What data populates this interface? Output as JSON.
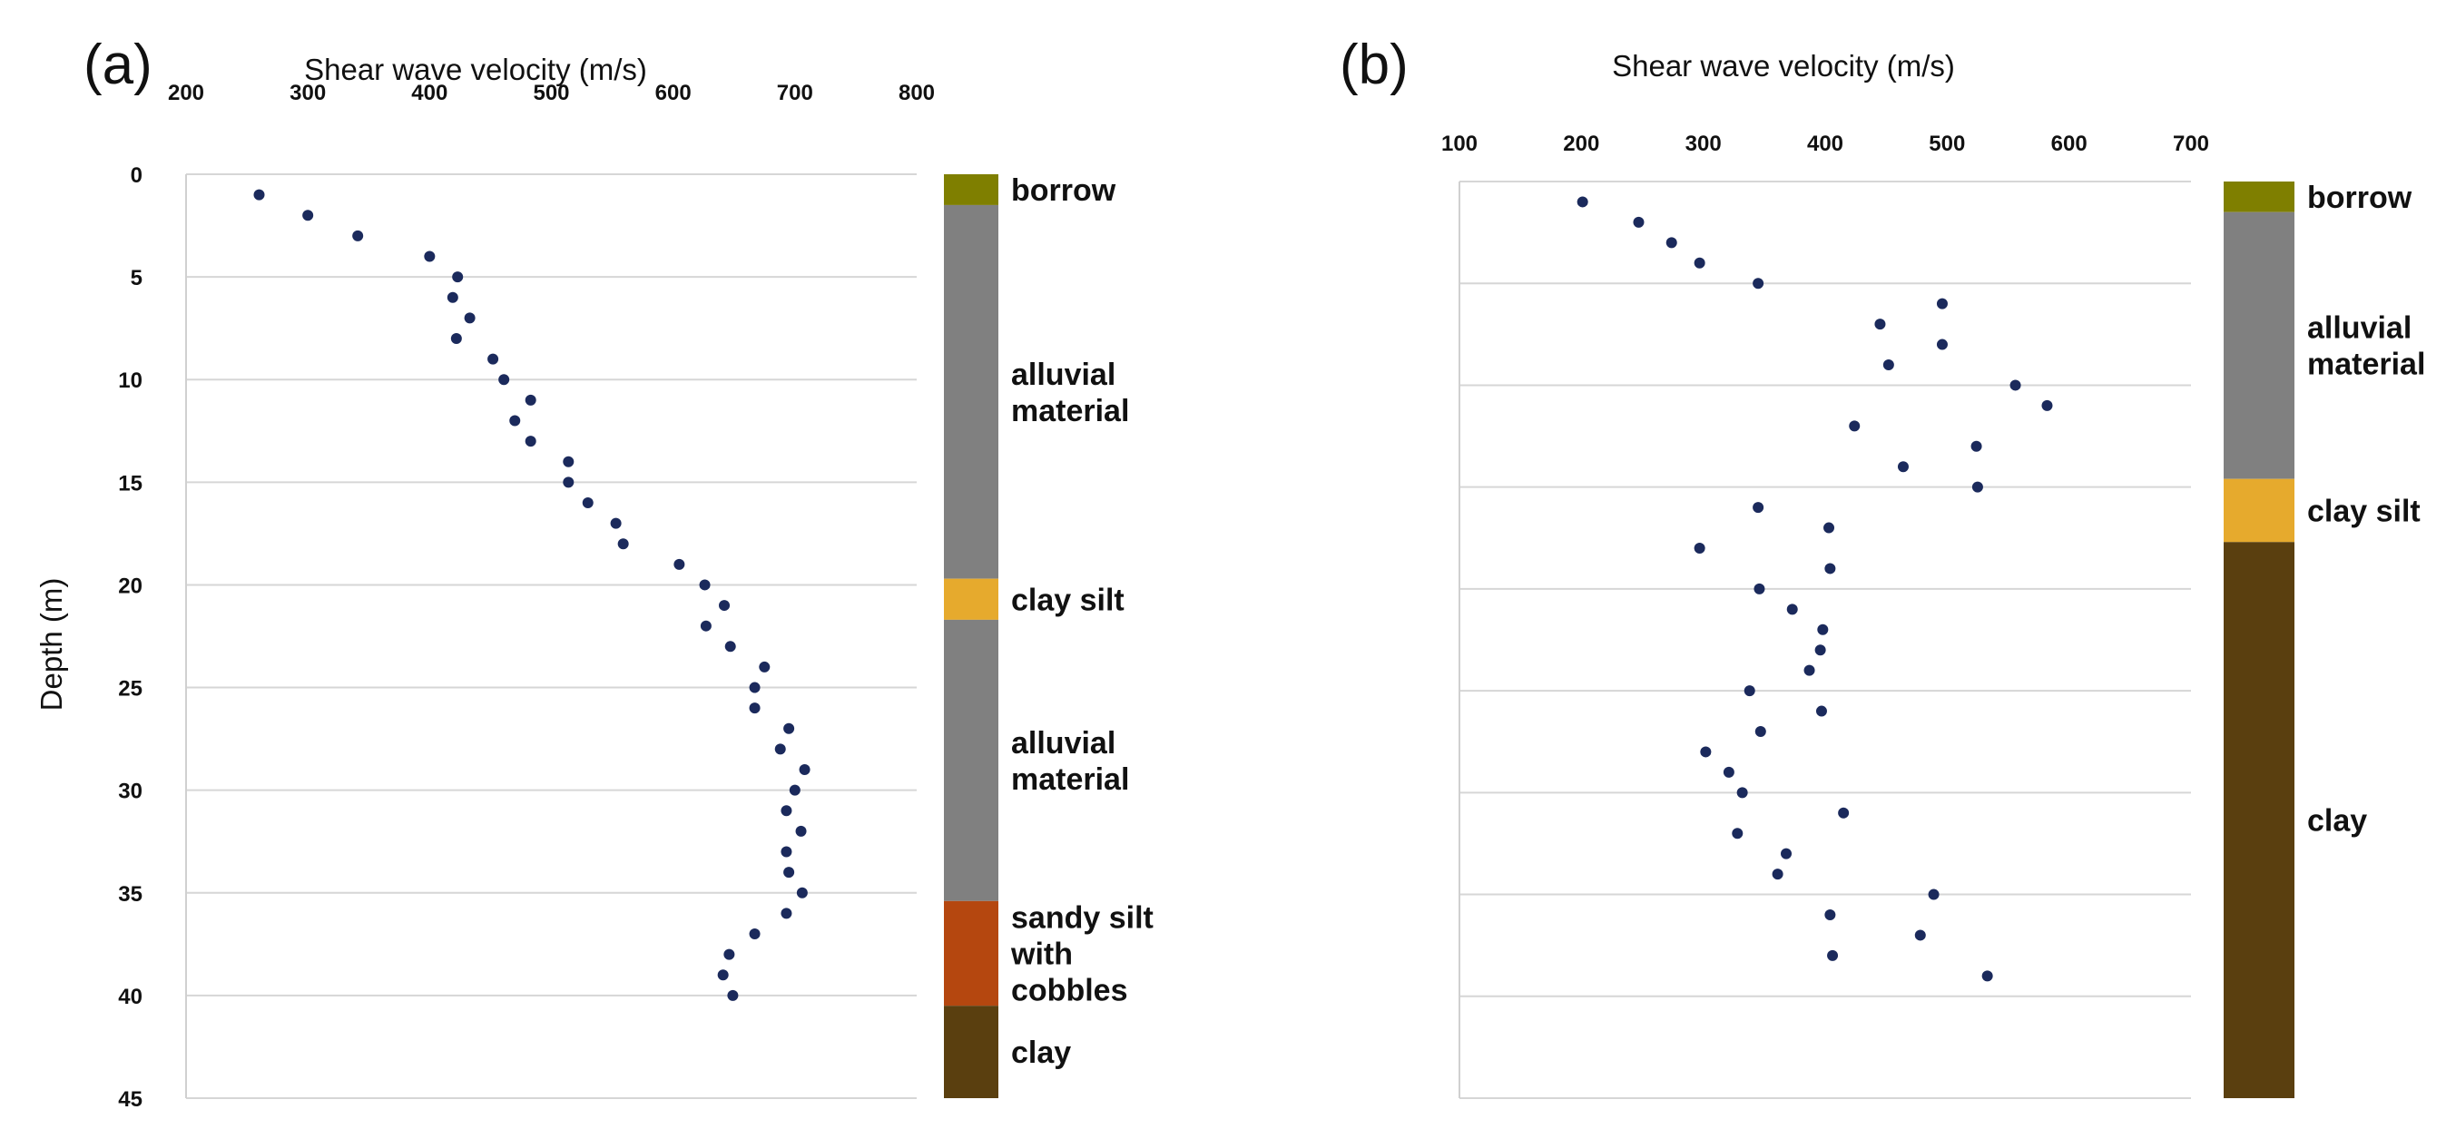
{
  "chart_data": [
    {
      "type": "scatter",
      "panel_label": "(a)",
      "title": "Shear wave velocity (m/s)",
      "xlabel": "Shear wave velocity (m/s)",
      "ylabel": "Depth (m)",
      "xlim": [
        200,
        800
      ],
      "ylim": [
        0,
        45
      ],
      "y_inverted": true,
      "x_ticks": [
        200,
        300,
        400,
        500,
        600,
        700,
        800
      ],
      "y_ticks": [
        0,
        5,
        10,
        15,
        20,
        25,
        30,
        35,
        40,
        45
      ],
      "grid": "horizontal",
      "marker_color": "#1b2a5c",
      "points": [
        {
          "x": 260,
          "y": 1
        },
        {
          "x": 300,
          "y": 2
        },
        {
          "x": 341,
          "y": 3
        },
        {
          "x": 400,
          "y": 4
        },
        {
          "x": 423,
          "y": 5
        },
        {
          "x": 419,
          "y": 6
        },
        {
          "x": 433,
          "y": 7
        },
        {
          "x": 422,
          "y": 8
        },
        {
          "x": 452,
          "y": 9
        },
        {
          "x": 461,
          "y": 10
        },
        {
          "x": 483,
          "y": 11
        },
        {
          "x": 470,
          "y": 12
        },
        {
          "x": 483,
          "y": 13
        },
        {
          "x": 514,
          "y": 14
        },
        {
          "x": 514,
          "y": 15
        },
        {
          "x": 530,
          "y": 16
        },
        {
          "x": 553,
          "y": 17
        },
        {
          "x": 559,
          "y": 18
        },
        {
          "x": 605,
          "y": 19
        },
        {
          "x": 626,
          "y": 20
        },
        {
          "x": 642,
          "y": 21
        },
        {
          "x": 627,
          "y": 22
        },
        {
          "x": 647,
          "y": 23
        },
        {
          "x": 675,
          "y": 24
        },
        {
          "x": 667,
          "y": 25
        },
        {
          "x": 667,
          "y": 26
        },
        {
          "x": 695,
          "y": 27
        },
        {
          "x": 688,
          "y": 28
        },
        {
          "x": 708,
          "y": 29
        },
        {
          "x": 700,
          "y": 30
        },
        {
          "x": 693,
          "y": 31
        },
        {
          "x": 705,
          "y": 32
        },
        {
          "x": 693,
          "y": 33
        },
        {
          "x": 695,
          "y": 34
        },
        {
          "x": 706,
          "y": 35
        },
        {
          "x": 693,
          "y": 36
        },
        {
          "x": 667,
          "y": 37
        },
        {
          "x": 646,
          "y": 38
        },
        {
          "x": 641,
          "y": 39
        },
        {
          "x": 649,
          "y": 40
        }
      ],
      "layers": [
        {
          "name": "borrow",
          "top": 0,
          "bottom": 1.5,
          "color": "#7f7f00"
        },
        {
          "name": "alluvial material",
          "top": 1.5,
          "bottom": 19.7,
          "color": "#808080"
        },
        {
          "name": "clay silt",
          "top": 19.7,
          "bottom": 21.7,
          "color": "#e6aa2d"
        },
        {
          "name": "alluvial material",
          "top": 21.7,
          "bottom": 35.4,
          "color": "#808080"
        },
        {
          "name": "sandy silt with cobbles",
          "top": 35.4,
          "bottom": 40.5,
          "color": "#b5470f"
        },
        {
          "name": "clay",
          "top": 40.5,
          "bottom": 45,
          "color": "#5a3f0f"
        }
      ],
      "layer_text": [
        {
          "lines": [
            "borrow"
          ]
        },
        {
          "lines": [
            "alluvial",
            "material"
          ]
        },
        {
          "lines": [
            "clay silt"
          ]
        },
        {
          "lines": [
            "alluvial",
            "material"
          ]
        },
        {
          "lines": [
            "sandy silt",
            "with",
            "cobbles"
          ]
        },
        {
          "lines": [
            "clay"
          ]
        }
      ]
    },
    {
      "type": "scatter",
      "panel_label": "(b)",
      "title": "Shear wave velocity (m/s)",
      "xlabel": "Shear wave velocity (m/s)",
      "ylabel": "",
      "xlim": [
        100,
        700
      ],
      "ylim": [
        0,
        45
      ],
      "y_inverted": true,
      "x_ticks": [
        100,
        200,
        300,
        400,
        500,
        600,
        700
      ],
      "grid": "horizontal",
      "marker_color": "#1b2a5c",
      "points": [
        {
          "x": 201,
          "y": 1
        },
        {
          "x": 247,
          "y": 2
        },
        {
          "x": 274,
          "y": 3
        },
        {
          "x": 297,
          "y": 4
        },
        {
          "x": 345,
          "y": 5
        },
        {
          "x": 496,
          "y": 6
        },
        {
          "x": 445,
          "y": 7
        },
        {
          "x": 496,
          "y": 8
        },
        {
          "x": 452,
          "y": 9
        },
        {
          "x": 556,
          "y": 10
        },
        {
          "x": 582,
          "y": 11
        },
        {
          "x": 424,
          "y": 12
        },
        {
          "x": 524,
          "y": 13
        },
        {
          "x": 464,
          "y": 14
        },
        {
          "x": 525,
          "y": 15
        },
        {
          "x": 345,
          "y": 16
        },
        {
          "x": 403,
          "y": 17
        },
        {
          "x": 297,
          "y": 18
        },
        {
          "x": 404,
          "y": 19
        },
        {
          "x": 346,
          "y": 20
        },
        {
          "x": 373,
          "y": 21
        },
        {
          "x": 398,
          "y": 22
        },
        {
          "x": 396,
          "y": 23
        },
        {
          "x": 387,
          "y": 24
        },
        {
          "x": 338,
          "y": 25
        },
        {
          "x": 397,
          "y": 26
        },
        {
          "x": 347,
          "y": 27
        },
        {
          "x": 302,
          "y": 28
        },
        {
          "x": 321,
          "y": 29
        },
        {
          "x": 332,
          "y": 30
        },
        {
          "x": 415,
          "y": 31
        },
        {
          "x": 328,
          "y": 32
        },
        {
          "x": 368,
          "y": 33
        },
        {
          "x": 361,
          "y": 34
        },
        {
          "x": 489,
          "y": 35
        },
        {
          "x": 404,
          "y": 36
        },
        {
          "x": 478,
          "y": 37
        },
        {
          "x": 406,
          "y": 38
        },
        {
          "x": 533,
          "y": 39
        }
      ],
      "layers": [
        {
          "name": "borrow",
          "top": 0,
          "bottom": 1.5,
          "color": "#7f7f00"
        },
        {
          "name": "alluvial material",
          "top": 1.5,
          "bottom": 14.6,
          "color": "#808080"
        },
        {
          "name": "clay silt",
          "top": 14.6,
          "bottom": 17.7,
          "color": "#e6aa2d"
        },
        {
          "name": "clay",
          "top": 17.7,
          "bottom": 45,
          "color": "#5a3f0f"
        }
      ],
      "layer_text": [
        {
          "lines": [
            "borrow"
          ]
        },
        {
          "lines": [
            "alluvial",
            "material"
          ]
        },
        {
          "lines": [
            "clay silt"
          ]
        },
        {
          "lines": [
            "clay"
          ]
        }
      ]
    }
  ]
}
